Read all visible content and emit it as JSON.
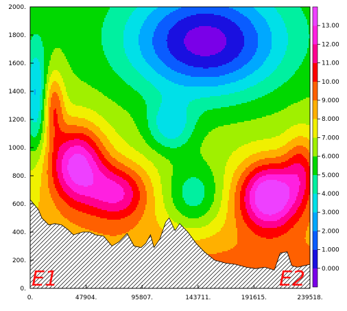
{
  "chart_data": {
    "type": "heatmap",
    "title": "",
    "xlabel": "",
    "ylabel": "",
    "xlim": [
      0,
      239518
    ],
    "ylim": [
      0,
      2000
    ],
    "x_ticks": [
      "0.",
      "47904.",
      "95807.",
      "143711.",
      "191615.",
      "239518."
    ],
    "x_tick_values": [
      0,
      47904,
      95807,
      143711,
      191615,
      239518
    ],
    "y_ticks": [
      "0.",
      "200.",
      "400.",
      "600.",
      "800.",
      "1000.",
      "1200.",
      "1400.",
      "1600.",
      "1800.",
      "2000."
    ],
    "y_tick_values": [
      0,
      200,
      400,
      600,
      800,
      1000,
      1200,
      1400,
      1600,
      1800,
      2000
    ],
    "colorbar": {
      "levels": [
        0,
        1,
        2,
        3,
        4,
        5,
        6,
        7,
        8,
        9,
        10,
        11,
        12,
        13
      ],
      "labels": [
        "0.000",
        "1.000",
        "2.000",
        "3.000",
        "4.000",
        "5.000",
        "6.000",
        "7.000",
        "8.000",
        "9.000",
        "10.00",
        "11.00",
        "12.00",
        "13.00"
      ],
      "colors": [
        "#7a00e8",
        "#1a10e0",
        "#0a5cff",
        "#00a8ff",
        "#00e0e8",
        "#00f0a0",
        "#00d800",
        "#a0f000",
        "#f0f000",
        "#ffb000",
        "#ff6000",
        "#ff0000",
        "#ff0090",
        "#ff20e0",
        "#ee40ff"
      ]
    },
    "annotations": [
      "E1",
      "E2"
    ],
    "terrain_profile": {
      "x": [
        0,
        7000,
        10000,
        16000,
        21000,
        27000,
        32000,
        37000,
        45000,
        51000,
        56000,
        63000,
        70000,
        76000,
        83000,
        89000,
        95000,
        99000,
        103000,
        106000,
        111000,
        116000,
        119000,
        124000,
        128000,
        135000,
        142000,
        149000,
        158000,
        167000,
        176000,
        185000,
        193000,
        201000,
        209000,
        214000,
        220000,
        224000,
        229000,
        234000,
        239518
      ],
      "y": [
        630,
        560,
        500,
        450,
        460,
        450,
        420,
        380,
        400,
        400,
        380,
        370,
        300,
        330,
        390,
        300,
        290,
        320,
        380,
        290,
        350,
        470,
        500,
        410,
        460,
        400,
        320,
        260,
        200,
        180,
        170,
        150,
        140,
        150,
        130,
        250,
        260,
        160,
        150,
        160,
        170
      ]
    },
    "field_peak_bands": [
      {
        "name": "E1 peak",
        "x_start": 16000,
        "x_end": 106000,
        "z_max": 13
      },
      {
        "name": "E2 peak",
        "x_start": 162000,
        "x_end": 239518,
        "z_max": 13
      }
    ]
  }
}
